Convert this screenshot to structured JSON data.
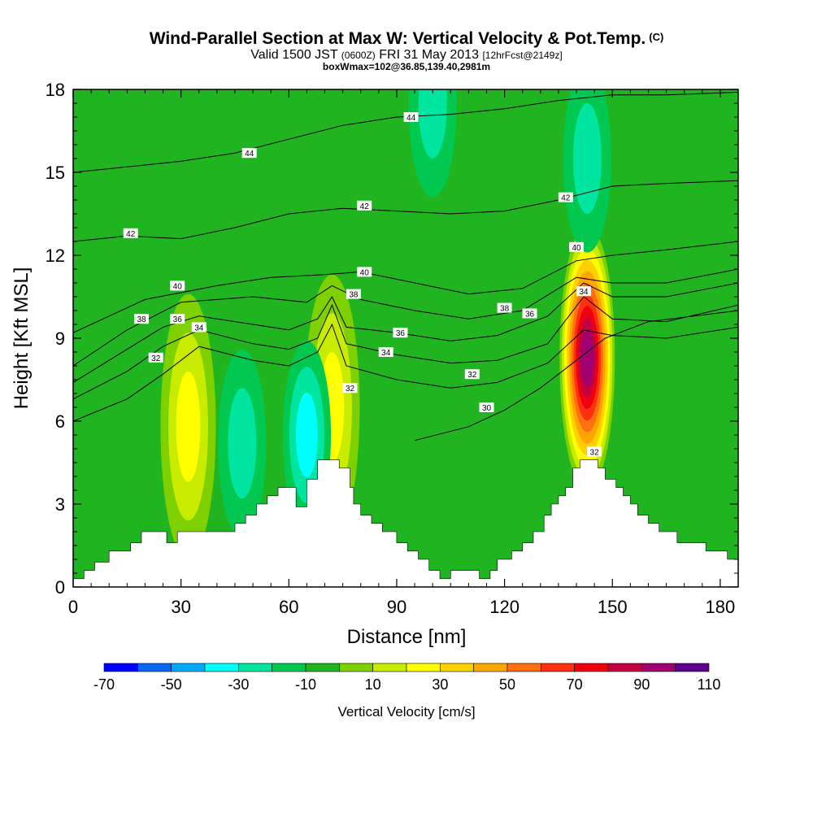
{
  "header": {
    "title": "Wind-Parallel Section at Max W: Vertical Velocity & Pot.Temp.",
    "title_mark": "(C)",
    "valid_prefix": "Valid 1500 JST",
    "valid_utc": "(0600Z)",
    "valid_date": "FRI 31 May 2013",
    "forecast": "[12hrFcst@2149z]",
    "boxmax": "boxWmax=102@36.85,139.40,2981m"
  },
  "colorbar": {
    "title": "Vertical Velocity [cm/s]",
    "tick_labels": [
      "-70",
      "-50",
      "-30",
      "-10",
      "10",
      "30",
      "50",
      "70",
      "90",
      "110"
    ],
    "colors": [
      "#0000ff",
      "#0a66f5",
      "#00a8ff",
      "#00ffff",
      "#00e6a0",
      "#00c850",
      "#20b420",
      "#7fd000",
      "#c8ec00",
      "#ffff00",
      "#ffd000",
      "#ffa500",
      "#ff7010",
      "#ff3010",
      "#ee0010",
      "#c00040",
      "#a00070",
      "#600090"
    ]
  },
  "chart_data": {
    "type": "heatmap",
    "xlabel": "Distance [nm]",
    "ylabel": "Height [Kft MSL]",
    "xlim": [
      0,
      185
    ],
    "ylim": [
      0,
      18
    ],
    "x_ticks": [
      "0",
      "30",
      "60",
      "90",
      "120",
      "150",
      "180"
    ],
    "y_ticks": [
      "0",
      "3",
      "6",
      "9",
      "12",
      "15",
      "18"
    ],
    "field_units": "cm/s",
    "field_range": [
      -70,
      110
    ],
    "updraft_cores": [
      {
        "x": 32,
        "y": 5.8,
        "max": 30
      },
      {
        "x": 72,
        "y": 6.5,
        "max": 30
      },
      {
        "x": 143,
        "y": 8.3,
        "max": 102
      }
    ],
    "downdraft_cores": [
      {
        "x": 47,
        "y": 5.2,
        "min": -30
      },
      {
        "x": 65,
        "y": 5.5,
        "min": -40
      },
      {
        "x": 100,
        "y": 17.5,
        "min": -30
      },
      {
        "x": 143,
        "y": 15.5,
        "min": -30
      }
    ],
    "terrain": [
      [
        0,
        0.3
      ],
      [
        3,
        0.3
      ],
      [
        3,
        0.6
      ],
      [
        6,
        0.6
      ],
      [
        6,
        0.9
      ],
      [
        10,
        0.9
      ],
      [
        10,
        1.3
      ],
      [
        16,
        1.3
      ],
      [
        16,
        1.6
      ],
      [
        19,
        1.6
      ],
      [
        19,
        2.0
      ],
      [
        26,
        2.0
      ],
      [
        26,
        1.6
      ],
      [
        29,
        1.6
      ],
      [
        29,
        2.0
      ],
      [
        45,
        2.0
      ],
      [
        45,
        2.3
      ],
      [
        48,
        2.3
      ],
      [
        48,
        2.6
      ],
      [
        51,
        2.6
      ],
      [
        51,
        3.0
      ],
      [
        54,
        3.0
      ],
      [
        54,
        3.3
      ],
      [
        57,
        3.3
      ],
      [
        57,
        3.6
      ],
      [
        62,
        3.6
      ],
      [
        62,
        2.9
      ],
      [
        65,
        2.9
      ],
      [
        65,
        3.9
      ],
      [
        68,
        3.9
      ],
      [
        68,
        4.6
      ],
      [
        74,
        4.6
      ],
      [
        74,
        4.3
      ],
      [
        77,
        4.3
      ],
      [
        77,
        3.6
      ],
      [
        78,
        3.6
      ],
      [
        78,
        3.0
      ],
      [
        80,
        3.0
      ],
      [
        80,
        2.6
      ],
      [
        83,
        2.6
      ],
      [
        83,
        2.3
      ],
      [
        86,
        2.3
      ],
      [
        86,
        2.0
      ],
      [
        90,
        2.0
      ],
      [
        90,
        1.6
      ],
      [
        93,
        1.6
      ],
      [
        93,
        1.3
      ],
      [
        96,
        1.3
      ],
      [
        96,
        1.0
      ],
      [
        99,
        1.0
      ],
      [
        99,
        0.6
      ],
      [
        102,
        0.6
      ],
      [
        102,
        0.3
      ],
      [
        105,
        0.3
      ],
      [
        105,
        0.6
      ],
      [
        113,
        0.6
      ],
      [
        113,
        0.3
      ],
      [
        116,
        0.3
      ],
      [
        116,
        0.6
      ],
      [
        118,
        0.6
      ],
      [
        118,
        1.0
      ],
      [
        122,
        1.0
      ],
      [
        122,
        1.3
      ],
      [
        125,
        1.3
      ],
      [
        125,
        1.6
      ],
      [
        128,
        1.6
      ],
      [
        128,
        2.0
      ],
      [
        131,
        2.0
      ],
      [
        131,
        2.6
      ],
      [
        133,
        2.6
      ],
      [
        133,
        3.0
      ],
      [
        135,
        3.0
      ],
      [
        135,
        3.3
      ],
      [
        137,
        3.3
      ],
      [
        137,
        3.6
      ],
      [
        139,
        3.6
      ],
      [
        139,
        4.3
      ],
      [
        141,
        4.3
      ],
      [
        141,
        4.6
      ],
      [
        146,
        4.6
      ],
      [
        146,
        4.3
      ],
      [
        148,
        4.3
      ],
      [
        148,
        3.9
      ],
      [
        151,
        3.9
      ],
      [
        151,
        3.6
      ],
      [
        153,
        3.6
      ],
      [
        153,
        3.3
      ],
      [
        155,
        3.3
      ],
      [
        155,
        3.0
      ],
      [
        157,
        3.0
      ],
      [
        157,
        2.6
      ],
      [
        160,
        2.6
      ],
      [
        160,
        2.3
      ],
      [
        163,
        2.3
      ],
      [
        163,
        2.0
      ],
      [
        168,
        2.0
      ],
      [
        168,
        1.6
      ],
      [
        176,
        1.6
      ],
      [
        176,
        1.3
      ],
      [
        182,
        1.3
      ],
      [
        182,
        1.0
      ],
      [
        185,
        1.0
      ]
    ],
    "theta_contours": [
      {
        "label": "30",
        "points": [
          [
            95,
            5.3
          ],
          [
            110,
            5.8
          ],
          [
            120,
            6.4
          ],
          [
            130,
            7.2
          ],
          [
            140,
            8.2
          ],
          [
            148,
            9.0
          ],
          [
            160,
            9.6
          ],
          [
            185,
            10.0
          ]
        ],
        "labels_at": [
          [
            115,
            6.5
          ]
        ]
      },
      {
        "label": "32",
        "points": [
          [
            0,
            6.0
          ],
          [
            15,
            6.8
          ],
          [
            25,
            7.7
          ],
          [
            35,
            8.7
          ],
          [
            50,
            8.2
          ],
          [
            60,
            8.0
          ],
          [
            68,
            8.5
          ],
          [
            72,
            9.5
          ],
          [
            76,
            8.0
          ],
          [
            90,
            7.5
          ],
          [
            105,
            7.2
          ],
          [
            118,
            7.4
          ],
          [
            132,
            8.1
          ],
          [
            142,
            9.3
          ],
          [
            150,
            9.1
          ],
          [
            165,
            9.0
          ],
          [
            185,
            9.4
          ]
        ],
        "labels_at": [
          [
            23,
            8.3
          ],
          [
            77,
            7.2
          ],
          [
            111,
            7.7
          ],
          [
            145,
            4.9
          ]
        ]
      },
      {
        "label": "34",
        "points": [
          [
            0,
            6.8
          ],
          [
            15,
            7.8
          ],
          [
            25,
            8.7
          ],
          [
            35,
            9.3
          ],
          [
            50,
            8.8
          ],
          [
            60,
            8.6
          ],
          [
            68,
            9.0
          ],
          [
            72,
            10.2
          ],
          [
            76,
            8.8
          ],
          [
            90,
            8.4
          ],
          [
            105,
            8.1
          ],
          [
            118,
            8.2
          ],
          [
            132,
            8.8
          ],
          [
            142,
            10.5
          ],
          [
            150,
            9.7
          ],
          [
            165,
            9.6
          ],
          [
            185,
            10.2
          ]
        ],
        "labels_at": [
          [
            35,
            9.4
          ],
          [
            87,
            8.5
          ],
          [
            142,
            10.7
          ]
        ]
      },
      {
        "label": "36",
        "points": [
          [
            0,
            7.4
          ],
          [
            15,
            8.6
          ],
          [
            25,
            9.4
          ],
          [
            35,
            9.8
          ],
          [
            50,
            9.5
          ],
          [
            60,
            9.3
          ],
          [
            68,
            9.7
          ],
          [
            72,
            10.5
          ],
          [
            76,
            9.4
          ],
          [
            90,
            9.2
          ],
          [
            105,
            8.9
          ],
          [
            118,
            9.1
          ],
          [
            132,
            9.8
          ],
          [
            142,
            11.0
          ],
          [
            150,
            10.5
          ],
          [
            165,
            10.5
          ],
          [
            185,
            11.0
          ]
        ],
        "labels_at": [
          [
            29,
            9.7
          ],
          [
            91,
            9.2
          ],
          [
            127,
            9.9
          ]
        ]
      },
      {
        "label": "38",
        "points": [
          [
            0,
            8.0
          ],
          [
            15,
            9.3
          ],
          [
            30,
            10.3
          ],
          [
            50,
            10.5
          ],
          [
            65,
            10.3
          ],
          [
            72,
            10.9
          ],
          [
            80,
            10.4
          ],
          [
            95,
            10.0
          ],
          [
            110,
            9.7
          ],
          [
            125,
            10.0
          ],
          [
            140,
            11.2
          ],
          [
            150,
            11.0
          ],
          [
            165,
            11.0
          ],
          [
            185,
            11.5
          ]
        ],
        "labels_at": [
          [
            19,
            9.7
          ],
          [
            78,
            10.6
          ],
          [
            120,
            10.1
          ]
        ]
      },
      {
        "label": "40",
        "points": [
          [
            0,
            9.2
          ],
          [
            20,
            10.4
          ],
          [
            40,
            10.9
          ],
          [
            55,
            11.2
          ],
          [
            70,
            11.3
          ],
          [
            80,
            11.4
          ],
          [
            95,
            11.0
          ],
          [
            110,
            10.6
          ],
          [
            125,
            10.8
          ],
          [
            140,
            11.8
          ],
          [
            150,
            12.0
          ],
          [
            165,
            12.2
          ],
          [
            185,
            12.5
          ]
        ],
        "labels_at": [
          [
            29,
            10.9
          ],
          [
            81,
            11.4
          ],
          [
            140,
            12.3
          ]
        ]
      },
      {
        "label": "42",
        "points": [
          [
            0,
            12.5
          ],
          [
            15,
            12.7
          ],
          [
            30,
            12.6
          ],
          [
            45,
            13.0
          ],
          [
            60,
            13.5
          ],
          [
            75,
            13.7
          ],
          [
            90,
            13.6
          ],
          [
            105,
            13.5
          ],
          [
            120,
            13.6
          ],
          [
            135,
            14.0
          ],
          [
            150,
            14.5
          ],
          [
            165,
            14.6
          ],
          [
            185,
            14.7
          ]
        ],
        "labels_at": [
          [
            16,
            12.8
          ],
          [
            81,
            13.8
          ],
          [
            137,
            14.1
          ]
        ]
      },
      {
        "label": "44",
        "points": [
          [
            0,
            15.0
          ],
          [
            15,
            15.2
          ],
          [
            30,
            15.4
          ],
          [
            45,
            15.7
          ],
          [
            60,
            16.2
          ],
          [
            75,
            16.7
          ],
          [
            90,
            17.0
          ],
          [
            105,
            17.1
          ],
          [
            120,
            17.3
          ],
          [
            135,
            17.6
          ],
          [
            150,
            17.8
          ],
          [
            165,
            17.8
          ],
          [
            185,
            17.9
          ]
        ],
        "labels_at": [
          [
            49,
            15.7
          ],
          [
            94,
            17.0
          ]
        ]
      }
    ]
  }
}
